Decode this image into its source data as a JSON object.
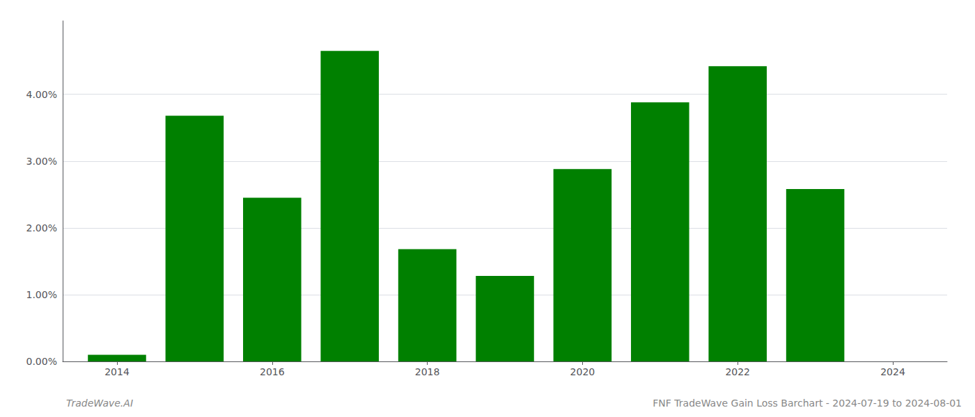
{
  "chart_data": {
    "type": "bar",
    "title": "FNF TradeWave Gain Loss Barchart - 2024-07-19 to 2024-08-01",
    "annotations": [
      "TradeWave.AI"
    ],
    "x": [
      2014,
      2015,
      2016,
      2017,
      2018,
      2019,
      2020,
      2021,
      2022,
      2023
    ],
    "values": [
      0.001,
      0.0368,
      0.0245,
      0.0465,
      0.0168,
      0.0128,
      0.0288,
      0.0388,
      0.0442,
      0.0258
    ],
    "color": "#008000",
    "xlim": [
      2013.3,
      2024.7
    ],
    "xticks": [
      2014,
      2016,
      2018,
      2020,
      2022,
      2024
    ],
    "ylim": [
      0,
      0.051
    ],
    "yticks": [
      {
        "value": 0.0,
        "label": "0.00%"
      },
      {
        "value": 0.01,
        "label": "1.00%"
      },
      {
        "value": 0.02,
        "label": "2.00%"
      },
      {
        "value": 0.03,
        "label": "3.00%"
      },
      {
        "value": 0.04,
        "label": "4.00%"
      }
    ],
    "grid": true
  }
}
